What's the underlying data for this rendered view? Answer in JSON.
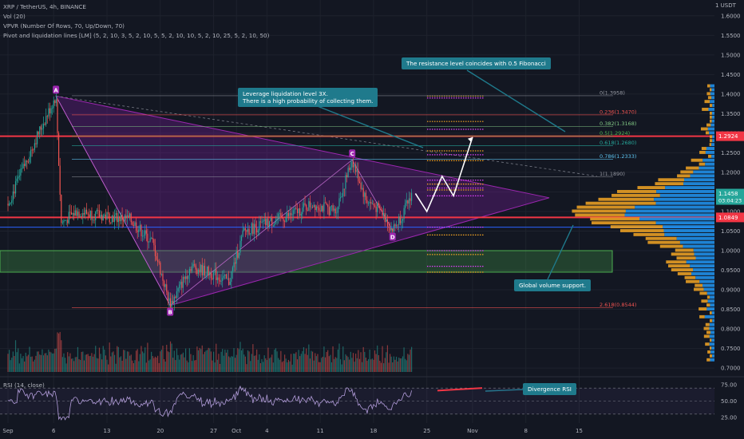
{
  "header": {
    "symbol_line": "XRP / TetherUS, 4h, BINANCE",
    "indicator_vol": "Vol (20)",
    "indicator_vpvr": "VPVR (Number Of Rows, 70, Up/Down, 70)",
    "indicator_pivots": "Pivot and liquidation lines [LM] (5, 2, 10, 3, 5, 2, 10, 5, 5, 2, 10, 10, 5, 2, 10, 25, 5, 2, 10, 50)"
  },
  "axis": {
    "unit_label": "1 USDT",
    "price_ticks": [
      "1.6000",
      "1.5500",
      "1.5000",
      "1.4500",
      "1.4000",
      "1.3500",
      "1.3000",
      "1.2500",
      "1.2000",
      "1.1500",
      "1.1000",
      "1.0500",
      "1.0000",
      "0.9500",
      "0.9000",
      "0.8500",
      "0.8000",
      "0.7500",
      "0.7000"
    ],
    "price_tick_values": [
      1.6,
      1.55,
      1.5,
      1.45,
      1.4,
      1.35,
      1.3,
      1.25,
      1.2,
      1.15,
      1.1,
      1.05,
      1.0,
      0.95,
      0.9,
      0.85,
      0.8,
      0.75,
      0.7
    ],
    "rsi_ticks": [
      "75.00",
      "50.00",
      "25.00"
    ],
    "rsi_tick_values": [
      75,
      50,
      25
    ],
    "date_ticks": [
      "Sep",
      "6",
      "13",
      "20",
      "27",
      "Oct",
      "4",
      "11",
      "18",
      "25",
      "Nov",
      "8",
      "15"
    ],
    "date_tick_days": [
      0,
      6,
      13,
      20,
      27,
      30,
      34,
      41,
      48,
      55,
      61,
      68,
      75
    ],
    "current_price": "1.1458",
    "countdown": "03:04:23",
    "price_tag_1": "1.2924",
    "price_tag_1_value": 1.2924,
    "price_tag_2": "1.0849",
    "price_tag_2_value": 1.0849,
    "current_price_value": 1.1458
  },
  "rsi": {
    "label": "RSI (14, close)"
  },
  "fib_levels": [
    {
      "label": "0(1.3958)",
      "value": 1.3958,
      "color": "#9598a1"
    },
    {
      "label": "0.236(1.3470)",
      "value": 1.347,
      "color": "#ef5350"
    },
    {
      "label": "0.382(1.3168)",
      "value": 1.3168,
      "color": "#81c784"
    },
    {
      "label": "0.5(1.2924)",
      "value": 1.2924,
      "color": "#4caf50"
    },
    {
      "label": "0.618(1.2680)",
      "value": 1.268,
      "color": "#26a69a"
    },
    {
      "label": "0.786(1.2333)",
      "value": 1.2333,
      "color": "#5ec4f0"
    },
    {
      "label": "1(1.1890)",
      "value": 1.189,
      "color": "#9598a1"
    },
    {
      "label": "2.618(0.8544)",
      "value": 0.8544,
      "color": "#ef5350"
    }
  ],
  "pattern_points": [
    {
      "label": "A",
      "day": 6.3,
      "price": 1.395
    },
    {
      "label": "B",
      "day": 21.3,
      "price": 0.86
    },
    {
      "label": "C",
      "day": 45.2,
      "price": 1.232
    },
    {
      "label": "D",
      "day": 50.5,
      "price": 1.052
    }
  ],
  "callouts": {
    "fib": "The resistance level coincides with 0.5 Fibonacci",
    "liquidation": "Leverage liquidation level 3X.\nThere is a high probability of collecting them.",
    "volume": "Global volume support.",
    "divergence": "Divergence RSI"
  },
  "colors": {
    "background": "#131722",
    "up": "#26a69a",
    "down": "#ef5350",
    "triangle": "#7b1fa2",
    "support_zone": "#4caf50",
    "callout": "#1f7a8c",
    "vp_up": "#2196f3",
    "vp_down": "#f5a623"
  },
  "chart_data": {
    "type": "candlestick",
    "title": "XRP / TetherUS, 4h, BINANCE",
    "ylabel": "USDT",
    "ylim": [
      0.69,
      1.62
    ],
    "x_unit": "days since Sep 1",
    "key_prices": [
      {
        "day": 0,
        "price": 1.12
      },
      {
        "day": 2,
        "price": 1.21
      },
      {
        "day": 4,
        "price": 1.3
      },
      {
        "day": 6.3,
        "price": 1.395
      },
      {
        "day": 7,
        "price": 1.07
      },
      {
        "day": 9,
        "price": 1.1
      },
      {
        "day": 12,
        "price": 1.09
      },
      {
        "day": 16,
        "price": 1.08
      },
      {
        "day": 19,
        "price": 1.02
      },
      {
        "day": 21.3,
        "price": 0.86
      },
      {
        "day": 24,
        "price": 0.96
      },
      {
        "day": 27,
        "price": 0.94
      },
      {
        "day": 29,
        "price": 0.92
      },
      {
        "day": 31,
        "price": 1.05
      },
      {
        "day": 34,
        "price": 1.07
      },
      {
        "day": 37,
        "price": 1.09
      },
      {
        "day": 40,
        "price": 1.12
      },
      {
        "day": 43,
        "price": 1.1
      },
      {
        "day": 45.2,
        "price": 1.232
      },
      {
        "day": 47,
        "price": 1.13
      },
      {
        "day": 49,
        "price": 1.1
      },
      {
        "day": 50.5,
        "price": 1.052
      },
      {
        "day": 52,
        "price": 1.1
      },
      {
        "day": 53,
        "price": 1.146
      }
    ],
    "horizontal_lines": [
      1.2924,
      1.0849,
      1.06
    ],
    "support_zone": [
      0.945,
      1.0
    ],
    "projection": [
      {
        "day": 53.5,
        "price": 1.146
      },
      {
        "day": 55,
        "price": 1.1
      },
      {
        "day": 57,
        "price": 1.19
      },
      {
        "day": 58.5,
        "price": 1.14
      },
      {
        "day": 61,
        "price": 1.29
      }
    ],
    "rsi_range": [
      20,
      80
    ]
  }
}
